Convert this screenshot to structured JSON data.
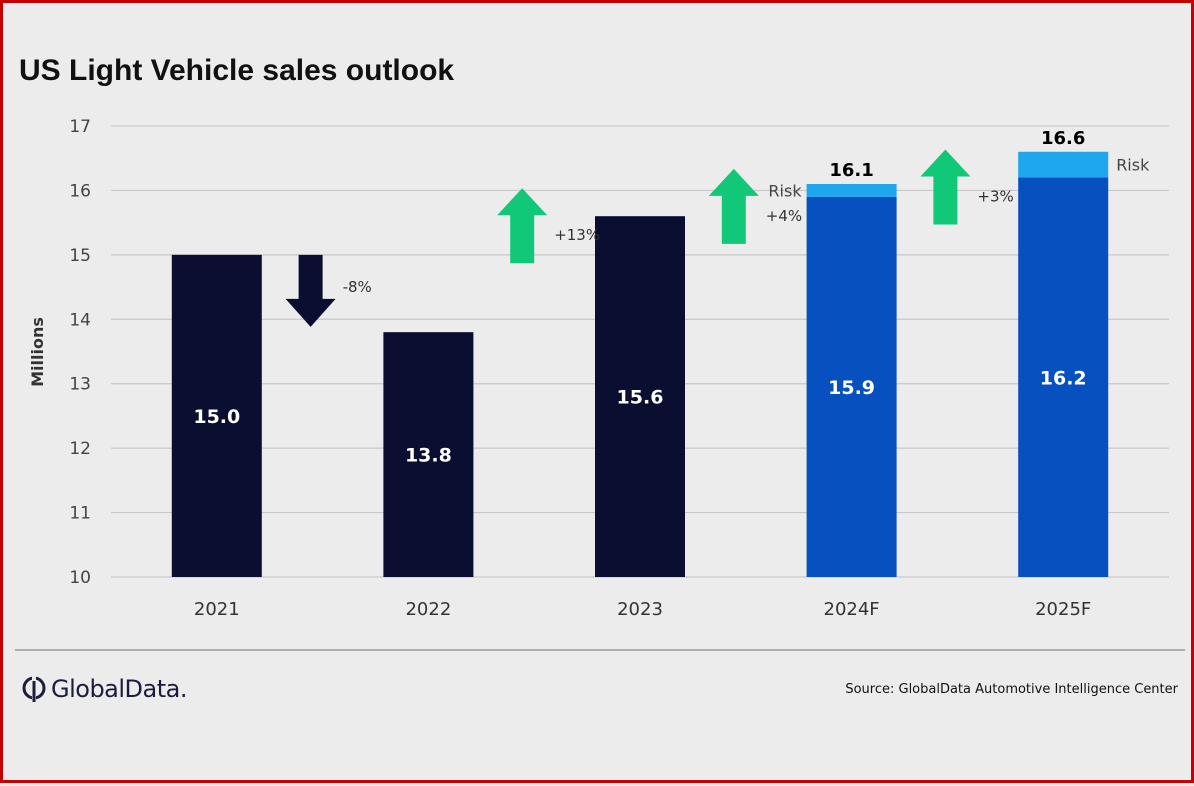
{
  "chart_data": {
    "type": "bar",
    "title": "US Light Vehicle sales outlook",
    "ylabel": "Millions",
    "ylim": [
      10,
      17
    ],
    "yticks": [
      10,
      11,
      12,
      13,
      14,
      15,
      16,
      17
    ],
    "grid": true,
    "categories": [
      "2021",
      "2022",
      "2023",
      "2024F",
      "2025F"
    ],
    "bars": [
      {
        "category": "2021",
        "value": 15.0,
        "label": "15.0",
        "forecast": false
      },
      {
        "category": "2022",
        "value": 13.8,
        "label": "13.8",
        "forecast": false
      },
      {
        "category": "2023",
        "value": 15.6,
        "label": "15.6",
        "forecast": false
      },
      {
        "category": "2024F",
        "value": 15.9,
        "label": "15.9",
        "forecast": true,
        "risk_upper": 16.1,
        "total_label": "16.1",
        "risk_label": "Risk"
      },
      {
        "category": "2025F",
        "value": 16.2,
        "label": "16.2",
        "forecast": true,
        "risk_upper": 16.6,
        "total_label": "16.6",
        "risk_label": "Risk"
      }
    ],
    "changes": [
      {
        "between": [
          "2021",
          "2022"
        ],
        "direction": "down",
        "label": "-8%"
      },
      {
        "between": [
          "2022",
          "2023"
        ],
        "direction": "up",
        "label": "+13%"
      },
      {
        "between": [
          "2023",
          "2024F"
        ],
        "direction": "up",
        "label": "+4%"
      },
      {
        "between": [
          "2024F",
          "2025F"
        ],
        "direction": "up",
        "label": "+3%"
      }
    ],
    "colors": {
      "actual": "#0a0e30",
      "forecast": "#0750c0",
      "risk": "#1ea6ef",
      "up_arrow": "#10c877",
      "down_arrow": "#0a0e30",
      "grid": "#c8c8c8",
      "frame": "#c40000"
    }
  },
  "footer": {
    "brand": "GlobalData.",
    "source": "Source: GlobalData Automotive  Intelligence Center"
  }
}
